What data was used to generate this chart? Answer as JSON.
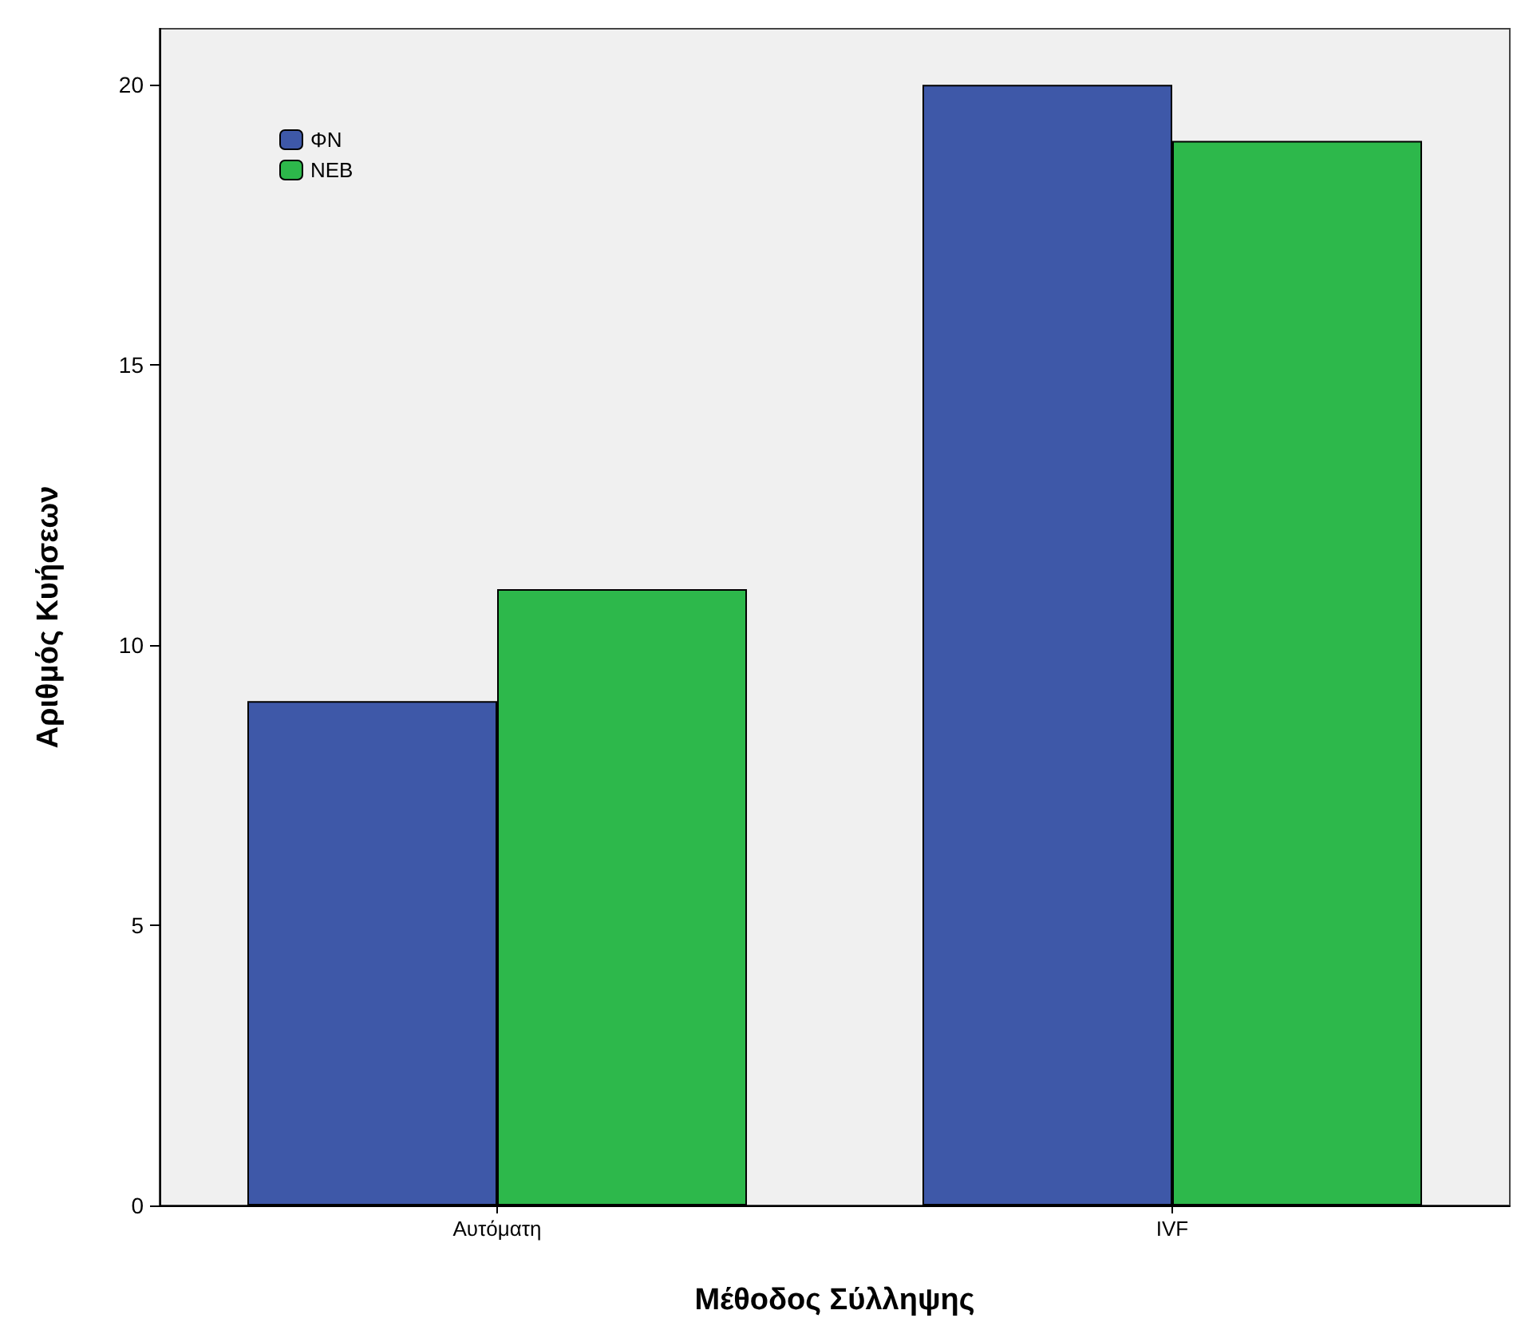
{
  "chart_data": {
    "type": "bar",
    "xlabel": "Μέθοδος Σύλληψης",
    "ylabel": "Αριθμός Κυήσεων",
    "categories": [
      "Αυτόματη",
      "IVF"
    ],
    "series": [
      {
        "name": "ΦΝ",
        "color": "#3e58a8",
        "values": [
          9,
          20
        ]
      },
      {
        "name": "ΝΕΒ",
        "color": "#2db84b",
        "values": [
          11,
          19
        ]
      }
    ],
    "ylim": [
      0,
      21
    ],
    "yticks": [
      0,
      5,
      10,
      15,
      20
    ],
    "grid": false,
    "legend": "top left"
  }
}
